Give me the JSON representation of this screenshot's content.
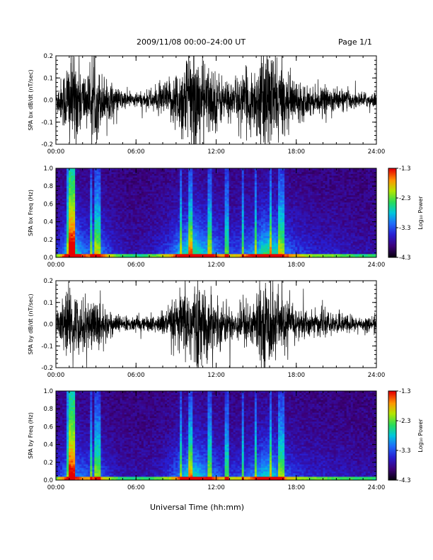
{
  "header": {
    "title": "2009/11/08   00:00–24:00 UT",
    "page": "Page 1/1"
  },
  "footer": {
    "xlabel": "Universal Time (hh:mm)"
  },
  "chart_data": [
    {
      "type": "line",
      "ylabel": "SPA bx dB/dt (nT/sec)",
      "xlim": [
        0,
        24
      ],
      "ylim": [
        -0.2,
        0.2
      ],
      "x_ticks": [
        "00:00",
        "06:00",
        "12:00",
        "18:00",
        "24:00"
      ],
      "y_ticks": [
        "0.2",
        "0.1",
        "0.0",
        "-0.1",
        "-0.2"
      ],
      "envelope": {
        "x": [
          0,
          0.5,
          1,
          1.5,
          2,
          2.5,
          3,
          3.5,
          4,
          4.5,
          5,
          5.5,
          6,
          6.5,
          7,
          7.5,
          8,
          8.5,
          9,
          9.5,
          10,
          10.5,
          11,
          11.5,
          12,
          12.5,
          13,
          13.5,
          14,
          14.5,
          15,
          15.5,
          16,
          16.5,
          17,
          17.5,
          18,
          18.5,
          19,
          19.5,
          20,
          20.5,
          21,
          21.5,
          22,
          22.5,
          23,
          23.5,
          24
        ],
        "amplitude": [
          0.05,
          0.1,
          0.2,
          0.18,
          0.12,
          0.1,
          0.15,
          0.1,
          0.08,
          0.05,
          0.04,
          0.03,
          0.03,
          0.03,
          0.04,
          0.05,
          0.07,
          0.08,
          0.12,
          0.16,
          0.2,
          0.2,
          0.16,
          0.14,
          0.12,
          0.09,
          0.08,
          0.08,
          0.1,
          0.12,
          0.14,
          0.2,
          0.2,
          0.18,
          0.12,
          0.1,
          0.08,
          0.07,
          0.06,
          0.05,
          0.05,
          0.05,
          0.05,
          0.04,
          0.04,
          0.03,
          0.03,
          0.03,
          0.03
        ]
      }
    },
    {
      "type": "heatmap",
      "ylabel": "SPA bx Freq (Hz)",
      "colorbar_label": "Log₁₀ Power",
      "xlim": [
        0,
        24
      ],
      "ylim": [
        0,
        1.0
      ],
      "x_ticks": [
        "00:00",
        "06:00",
        "12:00",
        "18:00",
        "24:00"
      ],
      "y_ticks": [
        "1.0",
        "0.8",
        "0.6",
        "0.4",
        "0.2",
        "0.0"
      ],
      "colorbar_ticks": [
        "-1.3",
        "-2.3",
        "-3.3",
        "-4.3"
      ],
      "clim": [
        -4.3,
        -1.3
      ]
    },
    {
      "type": "line",
      "ylabel": "SPA by dB/dt (nT/sec)",
      "xlim": [
        0,
        24
      ],
      "ylim": [
        -0.2,
        0.2
      ],
      "x_ticks": [
        "00:00",
        "06:00",
        "12:00",
        "18:00",
        "24:00"
      ],
      "y_ticks": [
        "0.2",
        "0.1",
        "0.0",
        "-0.1",
        "-0.2"
      ],
      "envelope": {
        "x": [
          0,
          0.5,
          1,
          1.5,
          2,
          2.5,
          3,
          3.5,
          4,
          4.5,
          5,
          5.5,
          6,
          6.5,
          7,
          7.5,
          8,
          8.5,
          9,
          9.5,
          10,
          10.5,
          11,
          11.5,
          12,
          12.5,
          13,
          13.5,
          14,
          14.5,
          15,
          15.5,
          16,
          16.5,
          17,
          17.5,
          18,
          18.5,
          19,
          19.5,
          20,
          20.5,
          21,
          21.5,
          22,
          22.5,
          23,
          23.5,
          24
        ],
        "amplitude": [
          0.05,
          0.09,
          0.15,
          0.12,
          0.1,
          0.09,
          0.12,
          0.08,
          0.06,
          0.04,
          0.03,
          0.03,
          0.03,
          0.03,
          0.03,
          0.04,
          0.05,
          0.07,
          0.1,
          0.13,
          0.18,
          0.17,
          0.14,
          0.12,
          0.1,
          0.08,
          0.07,
          0.07,
          0.08,
          0.1,
          0.12,
          0.16,
          0.17,
          0.14,
          0.1,
          0.08,
          0.07,
          0.06,
          0.05,
          0.05,
          0.05,
          0.04,
          0.04,
          0.04,
          0.04,
          0.03,
          0.03,
          0.03,
          0.03
        ]
      }
    },
    {
      "type": "heatmap",
      "ylabel": "SPA by Freq (Hz)",
      "colorbar_label": "Log₁₀ Power",
      "xlim": [
        0,
        24
      ],
      "ylim": [
        0,
        1.0
      ],
      "x_ticks": [
        "00:00",
        "06:00",
        "12:00",
        "18:00",
        "24:00"
      ],
      "y_ticks": [
        "1.0",
        "0.8",
        "0.6",
        "0.4",
        "0.2",
        "0.0"
      ],
      "colorbar_ticks": [
        "-1.3",
        "-2.3",
        "-3.3",
        "-4.3"
      ],
      "clim": [
        -4.3,
        -1.3
      ]
    }
  ]
}
